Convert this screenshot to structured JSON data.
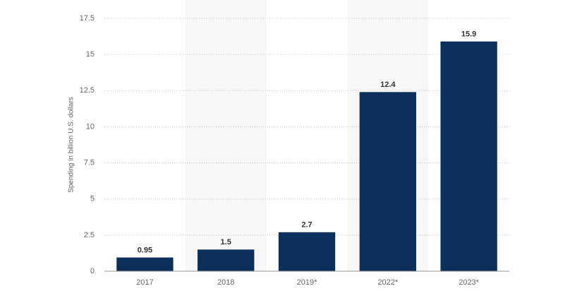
{
  "chart_data": {
    "type": "bar",
    "y_axis_label": "Spending in billion U.S. dollars",
    "categories": [
      "2017",
      "2018",
      "2019*",
      "2022*",
      "2023*"
    ],
    "values": [
      0.95,
      1.5,
      2.7,
      12.4,
      15.9
    ],
    "color": "#0c2f5c",
    "ylim": [
      0,
      17.5
    ],
    "yticks": [
      0,
      2.5,
      5,
      7.5,
      10,
      12.5,
      15,
      17.5
    ],
    "grid": true
  }
}
